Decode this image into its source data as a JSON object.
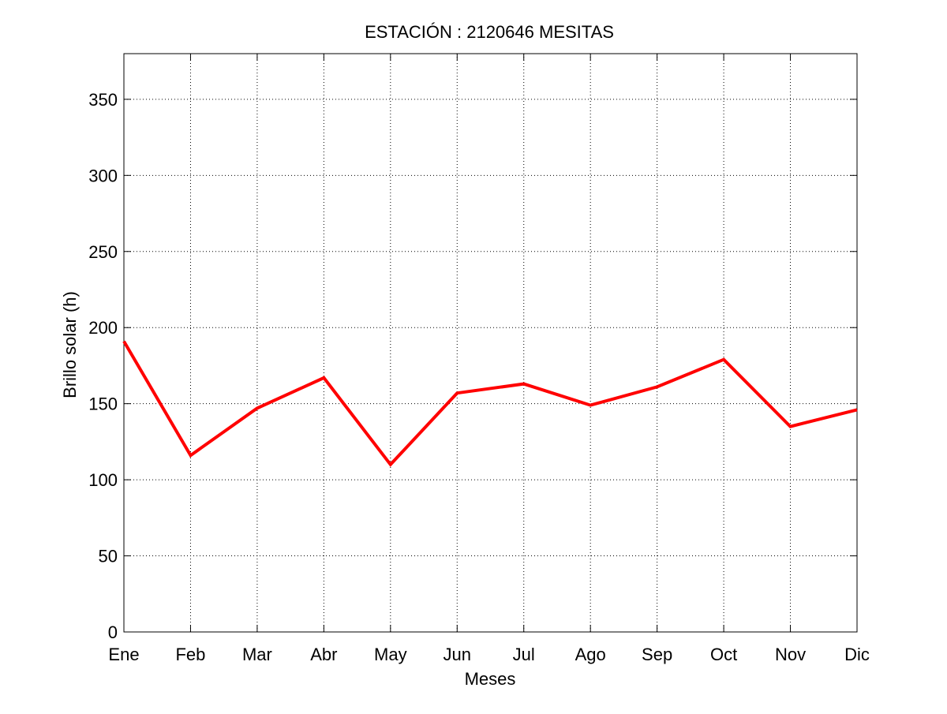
{
  "colors": {
    "background": "#ffffff",
    "axes": "#000000",
    "grid": "#000000",
    "series_line": "#ff0000"
  },
  "chart_data": {
    "type": "line",
    "title": "ESTACIÓN :  2120646  MESITAS",
    "xlabel": "Meses",
    "ylabel": "Brillo solar (h)",
    "categories": [
      "Ene",
      "Feb",
      "Mar",
      "Abr",
      "May",
      "Jun",
      "Jul",
      "Ago",
      "Sep",
      "Oct",
      "Nov",
      "Dic"
    ],
    "series": [
      {
        "values": [
          191,
          116,
          147,
          167,
          110,
          157,
          163,
          149,
          161,
          179,
          135,
          146
        ]
      }
    ],
    "ylim": [
      0,
      380
    ],
    "yticks": [
      0,
      50,
      100,
      150,
      200,
      250,
      300,
      350
    ],
    "grid": true,
    "grid_style": "dotted",
    "legend": "none"
  }
}
